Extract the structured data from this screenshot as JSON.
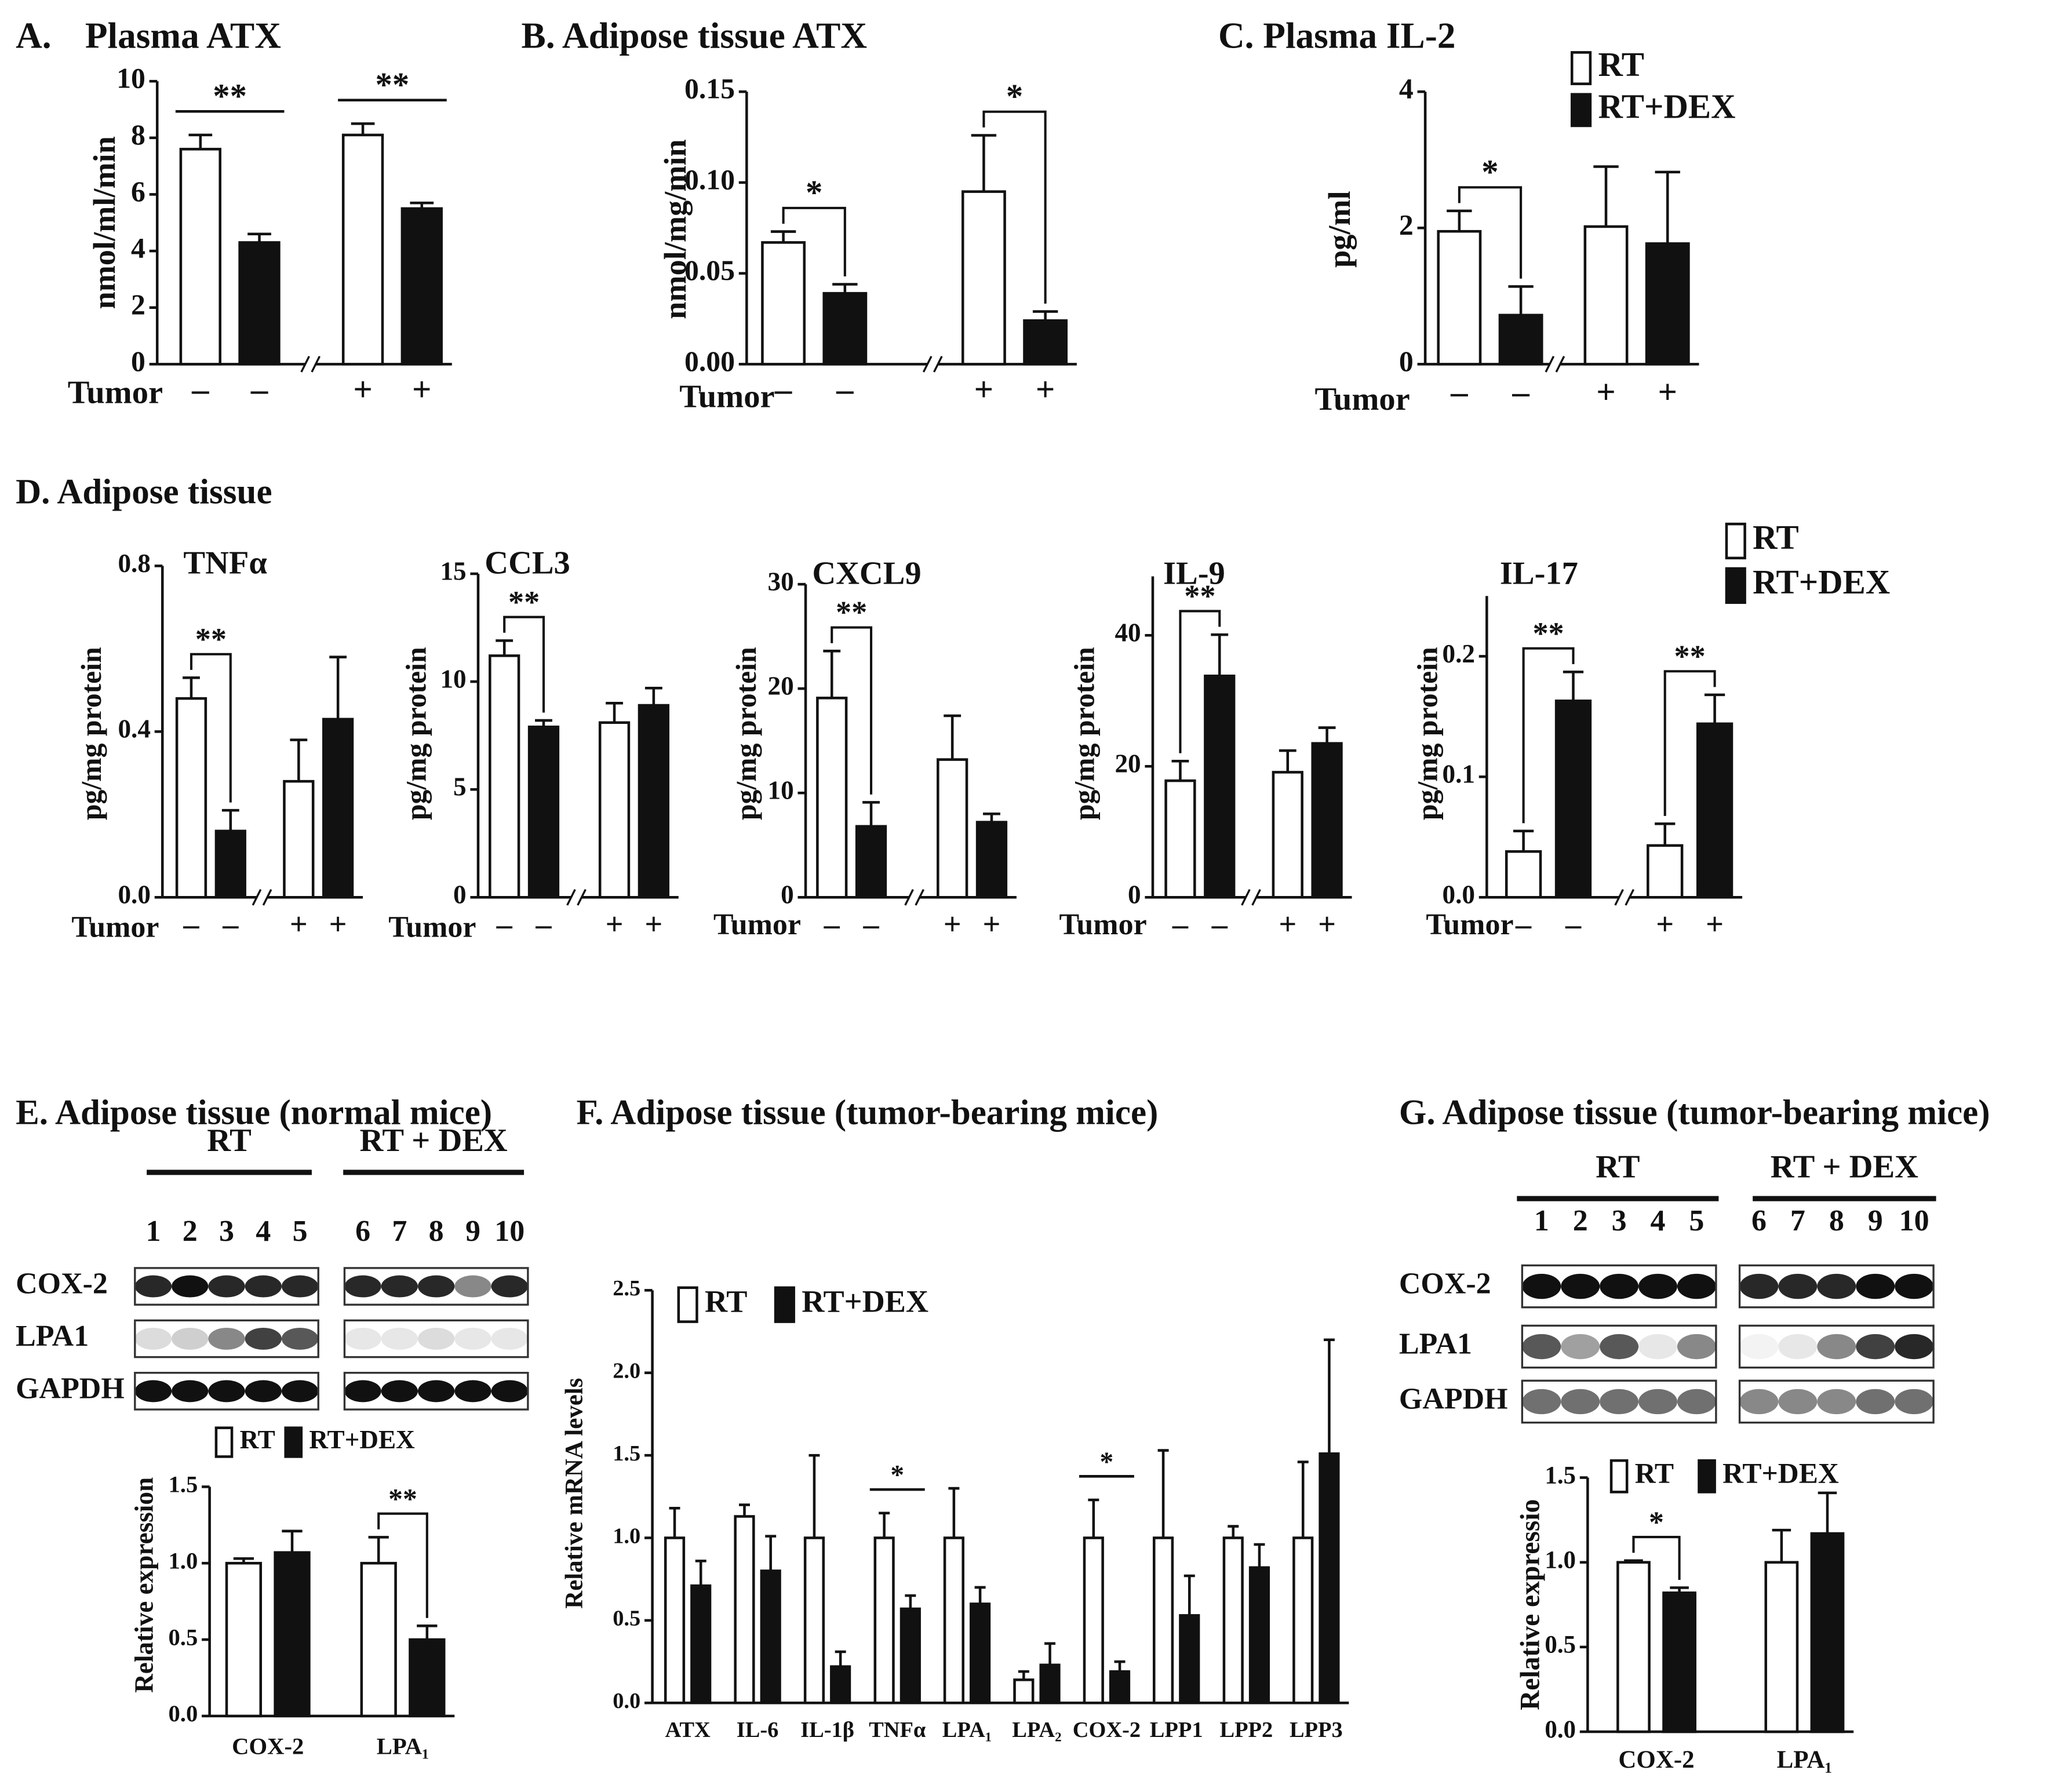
{
  "figure_labels": [
    "D. Adipose tissue"
  ],
  "chart_data": [
    {
      "type": "bar",
      "label": "A.",
      "title": "Plasma ATX",
      "ylabel": "nmol/ml/min",
      "xlabel": "Tumor",
      "categories": [
        "–",
        "+"
      ],
      "ylim": [
        0,
        10
      ],
      "yticks": [
        0,
        2,
        4,
        6,
        8,
        10
      ],
      "significance_style": "line",
      "significance": [
        "**",
        "**"
      ],
      "series": [
        {
          "name": "RT",
          "color": "#ffffff",
          "values": [
            7.6,
            8.1
          ],
          "errors": [
            0.5,
            0.4
          ]
        },
        {
          "name": "RT+DEX",
          "color": "#111111",
          "values": [
            4.3,
            5.5
          ],
          "errors": [
            0.3,
            0.2
          ]
        }
      ]
    },
    {
      "type": "bar",
      "title": "B. Adipose tissue ATX",
      "ylabel": "nmol/mg/min",
      "xlabel": "Tumor",
      "categories": [
        "–",
        "+"
      ],
      "ylim": [
        0,
        0.15
      ],
      "yticks": [
        {
          "value": 0,
          "label": "0.00"
        },
        {
          "value": 0.05,
          "label": "0.05"
        },
        {
          "value": 0.1,
          "label": "0.10"
        },
        {
          "value": 0.15,
          "label": "0.15"
        }
      ],
      "significance_style": "bracket",
      "significance": [
        "*",
        "*"
      ],
      "series": [
        {
          "name": "RT",
          "color": "#ffffff",
          "values": [
            0.067,
            0.095
          ],
          "errors": [
            0.006,
            0.031
          ]
        },
        {
          "name": "RT+DEX",
          "color": "#111111",
          "values": [
            0.039,
            0.024
          ],
          "errors": [
            0.005,
            0.005
          ]
        }
      ]
    },
    {
      "type": "bar",
      "title": "C. Plasma IL-2",
      "ylabel": "pg/ml",
      "xlabel": "Tumor",
      "categories": [
        "–",
        "+"
      ],
      "ylim": [
        0,
        4
      ],
      "yticks": [
        0,
        2,
        4
      ],
      "legend": true,
      "significance_style": "bracket",
      "significance": [
        "*",
        null
      ],
      "series": [
        {
          "name": "RT",
          "color": "#ffffff",
          "values": [
            1.95,
            2.02
          ],
          "errors": [
            0.3,
            0.88
          ]
        },
        {
          "name": "RT+DEX",
          "color": "#111111",
          "values": [
            0.72,
            1.77
          ],
          "errors": [
            0.42,
            1.05
          ]
        }
      ]
    },
    {
      "type": "bar",
      "title": "TNFα",
      "ylabel": "pg/mg protein",
      "xlabel": "Tumor",
      "categories": [
        "–",
        "+"
      ],
      "ylim": [
        0,
        0.8
      ],
      "yticks": [
        {
          "value": 0,
          "label": "0.0"
        },
        {
          "value": 0.4,
          "label": "0.4"
        },
        {
          "value": 0.8,
          "label": "0.8"
        }
      ],
      "significance_style": "bracket",
      "significance": [
        "**",
        null
      ],
      "series": [
        {
          "name": "RT",
          "color": "#ffffff",
          "values": [
            0.48,
            0.28
          ],
          "errors": [
            0.05,
            0.1
          ]
        },
        {
          "name": "RT+DEX",
          "color": "#111111",
          "values": [
            0.16,
            0.43
          ],
          "errors": [
            0.05,
            0.15
          ]
        }
      ]
    },
    {
      "type": "bar",
      "title": "CCL3",
      "ylabel": "pg/mg protein",
      "xlabel": "Tumor",
      "categories": [
        "–",
        "+"
      ],
      "ylim": [
        0,
        15
      ],
      "yticks": [
        0,
        5,
        10,
        15
      ],
      "significance_style": "bracket",
      "significance": [
        "**",
        null
      ],
      "series": [
        {
          "name": "RT",
          "color": "#ffffff",
          "values": [
            11.2,
            8.1
          ],
          "errors": [
            0.7,
            0.9
          ]
        },
        {
          "name": "RT+DEX",
          "color": "#111111",
          "values": [
            7.9,
            8.9
          ],
          "errors": [
            0.3,
            0.8
          ]
        }
      ]
    },
    {
      "type": "bar",
      "title": "CXCL9",
      "ylabel": "pg/mg protein",
      "xlabel": "Tumor",
      "categories": [
        "–",
        "+"
      ],
      "ylim": [
        0,
        30
      ],
      "yticks": [
        0,
        10,
        20,
        30
      ],
      "significance_style": "bracket",
      "significance": [
        "**",
        null
      ],
      "series": [
        {
          "name": "RT",
          "color": "#ffffff",
          "values": [
            19.1,
            13.2
          ],
          "errors": [
            4.5,
            4.2
          ]
        },
        {
          "name": "RT+DEX",
          "color": "#111111",
          "values": [
            6.8,
            7.2
          ],
          "errors": [
            2.3,
            0.8
          ]
        }
      ]
    },
    {
      "type": "bar",
      "title": "IL-9",
      "ylabel": "pg/mg protein",
      "xlabel": "Tumor",
      "categories": [
        "–",
        "+"
      ],
      "ylim": [
        0,
        49
      ],
      "yticks": [
        0,
        20,
        40
      ],
      "significance_style": "bracket",
      "significance": [
        "**",
        null
      ],
      "series": [
        {
          "name": "RT",
          "color": "#ffffff",
          "values": [
            17.8,
            19.1
          ],
          "errors": [
            3,
            3.3
          ]
        },
        {
          "name": "RT+DEX",
          "color": "#111111",
          "values": [
            33.8,
            23.5
          ],
          "errors": [
            6.3,
            2.4
          ]
        }
      ]
    },
    {
      "type": "bar",
      "title": "IL-17",
      "ylabel": "pg/mg protein",
      "xlabel": "Tumor",
      "categories": [
        "–",
        "+"
      ],
      "ylim": [
        0,
        0.25
      ],
      "yticks": [
        {
          "value": 0,
          "label": "0.0"
        },
        {
          "value": 0.1,
          "label": "0.1"
        },
        {
          "value": 0.2,
          "label": "0.2"
        }
      ],
      "legend": true,
      "significance_style": "bracket",
      "significance": [
        "**",
        "**"
      ],
      "series": [
        {
          "name": "RT",
          "color": "#ffffff",
          "values": [
            0.038,
            0.043
          ],
          "errors": [
            0.017,
            0.018
          ]
        },
        {
          "name": "RT+DEX",
          "color": "#111111",
          "values": [
            0.163,
            0.144
          ],
          "errors": [
            0.024,
            0.024
          ]
        }
      ]
    },
    {
      "type": "bar",
      "ylabel": "Relative expression",
      "categories": [
        "COX-2",
        "LPA₁"
      ],
      "ylim": [
        0,
        1.5
      ],
      "yticks": [
        {
          "value": 0,
          "label": "0.0"
        },
        {
          "value": 0.5,
          "label": "0.5"
        },
        {
          "value": 1,
          "label": "1.0"
        },
        {
          "value": 1.5,
          "label": "1.5"
        }
      ],
      "legend": true,
      "significance_style": "bracket",
      "significance": [
        null,
        "**"
      ],
      "series": [
        {
          "name": "RT",
          "color": "#ffffff",
          "values": [
            1.0,
            1.0
          ],
          "errors": [
            0.03,
            0.17
          ]
        },
        {
          "name": "RT+DEX",
          "color": "#111111",
          "values": [
            1.07,
            0.5
          ],
          "errors": [
            0.14,
            0.09
          ]
        }
      ]
    },
    {
      "type": "bar",
      "title": "F. Adipose tissue (tumor-bearing mice)",
      "ylabel": "Relative mRNA levels",
      "categories": [
        "ATX",
        "IL-6",
        "IL-1β",
        "TNFα",
        "LPA₁",
        "LPA₂",
        "COX-2",
        "LPP1",
        "LPP2",
        "LPP3"
      ],
      "ylim": [
        0,
        2.5
      ],
      "yticks": [
        {
          "value": 0,
          "label": "0.0"
        },
        {
          "value": 0.5,
          "label": "0.5"
        },
        {
          "value": 1,
          "label": "1.0"
        },
        {
          "value": 1.5,
          "label": "1.5"
        },
        {
          "value": 2,
          "label": "2.0"
        },
        {
          "value": 2.5,
          "label": "2.5"
        }
      ],
      "legend": true,
      "significance_style": "line",
      "significance": [
        null,
        null,
        null,
        "*",
        null,
        null,
        "*",
        null,
        null,
        null
      ],
      "series": [
        {
          "name": "RT",
          "color": "#ffffff",
          "values": [
            1.0,
            1.13,
            1.0,
            1.0,
            1.0,
            0.14,
            1.0,
            1.0,
            1.0,
            1.0
          ],
          "errors": [
            0.18,
            0.07,
            0.5,
            0.15,
            0.3,
            0.05,
            0.23,
            0.53,
            0.07,
            0.46
          ]
        },
        {
          "name": "RT+DEX",
          "color": "#111111",
          "values": [
            0.71,
            0.8,
            0.22,
            0.57,
            0.6,
            0.23,
            0.19,
            0.53,
            0.82,
            1.51
          ],
          "errors": [
            0.15,
            0.21,
            0.09,
            0.08,
            0.1,
            0.13,
            0.06,
            0.24,
            0.14,
            0.69
          ]
        }
      ]
    },
    {
      "type": "bar",
      "ylabel": "Relative expressio",
      "categories": [
        "COX-2",
        "LPA₁"
      ],
      "ylim": [
        0,
        1.5
      ],
      "yticks": [
        {
          "value": 0,
          "label": "0.0"
        },
        {
          "value": 0.5,
          "label": "0.5"
        },
        {
          "value": 1,
          "label": "1.0"
        },
        {
          "value": 1.5,
          "label": "1.5"
        }
      ],
      "legend": true,
      "significance_style": "bracket",
      "significance": [
        "*",
        null
      ],
      "series": [
        {
          "name": "RT",
          "color": "#ffffff",
          "values": [
            1.0,
            1.0
          ],
          "errors": [
            0.01,
            0.19
          ]
        },
        {
          "name": "RT+DEX",
          "color": "#111111",
          "values": [
            0.82,
            1.17
          ],
          "errors": [
            0.03,
            0.24
          ]
        }
      ]
    }
  ],
  "blots": [
    {
      "title": "E. Adipose tissue (normal mice)",
      "groups": [
        {
          "label": "RT",
          "lanes": [
            "1",
            "2",
            "3",
            "4",
            "5"
          ]
        },
        {
          "label": "RT + DEX",
          "lanes": [
            "6",
            "7",
            "8",
            "9",
            "10"
          ]
        }
      ],
      "rows": [
        "COX-2",
        "LPA1",
        "GAPDH"
      ]
    },
    {
      "title": "G. Adipose tissue (tumor-bearing mice)",
      "groups": [
        {
          "label": "RT",
          "lanes": [
            "1",
            "2",
            "3",
            "4",
            "5"
          ]
        },
        {
          "label": "RT + DEX",
          "lanes": [
            "6",
            "7",
            "8",
            "9",
            "10"
          ]
        }
      ],
      "rows": [
        "COX-2",
        "LPA1",
        "GAPDH"
      ]
    }
  ]
}
